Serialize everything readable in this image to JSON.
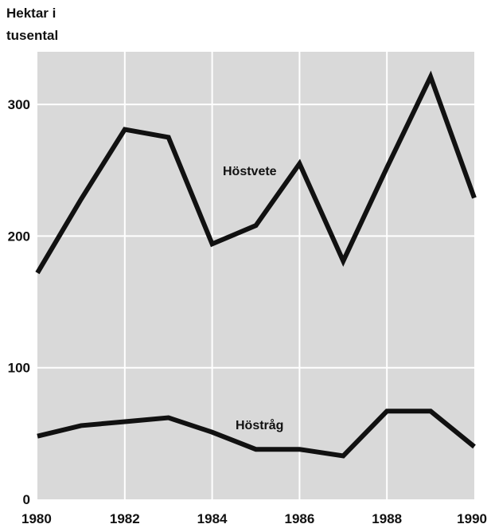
{
  "chart_data": {
    "type": "line",
    "title": "",
    "ylabel_lines": [
      "Hektar i",
      "tusental"
    ],
    "xlabel": "",
    "x": [
      1980,
      1981,
      1982,
      1983,
      1984,
      1985,
      1986,
      1987,
      1988,
      1989,
      1990
    ],
    "xticks": [
      "1980",
      "1982",
      "1984",
      "1986",
      "1988",
      "1990"
    ],
    "yticks": [
      "0",
      "100",
      "200",
      "300"
    ],
    "xlim": [
      1980,
      1990
    ],
    "ylim": [
      0,
      340
    ],
    "grid": true,
    "legend": "none",
    "series": [
      {
        "name": "Höstvete",
        "values": [
          172,
          228,
          281,
          275,
          194,
          208,
          255,
          181,
          252,
          321,
          229
        ]
      },
      {
        "name": "Höstråg",
        "values": [
          48,
          56,
          59,
          62,
          51,
          38,
          38,
          33,
          67,
          67,
          40
        ]
      }
    ],
    "colors": {
      "plot_background": "#d9d9d9",
      "grid": "#ffffff",
      "line": "#111111",
      "text": "#111111"
    }
  }
}
